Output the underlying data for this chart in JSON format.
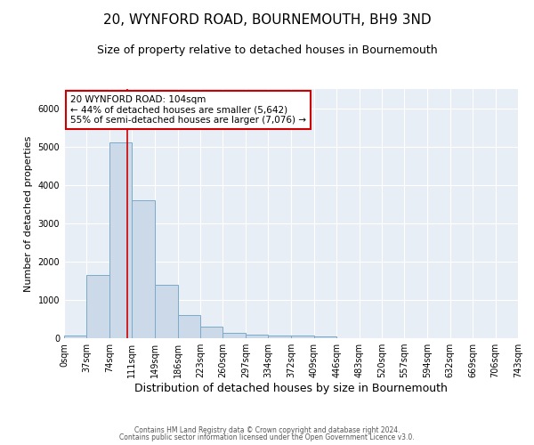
{
  "title": "20, WYNFORD ROAD, BOURNEMOUTH, BH9 3ND",
  "subtitle": "Size of property relative to detached houses in Bournemouth",
  "xlabel": "Distribution of detached houses by size in Bournemouth",
  "ylabel": "Number of detached properties",
  "bin_edges": [
    0,
    37,
    74,
    111,
    149,
    186,
    223,
    260,
    297,
    334,
    372,
    409,
    446,
    483,
    520,
    557,
    594,
    632,
    669,
    706,
    743
  ],
  "bin_labels": [
    "0sqm",
    "37sqm",
    "74sqm",
    "111sqm",
    "149sqm",
    "186sqm",
    "223sqm",
    "260sqm",
    "297sqm",
    "334sqm",
    "372sqm",
    "409sqm",
    "446sqm",
    "483sqm",
    "520sqm",
    "557sqm",
    "594sqm",
    "632sqm",
    "669sqm",
    "706sqm",
    "743sqm"
  ],
  "bar_heights": [
    75,
    1650,
    5100,
    3600,
    1400,
    600,
    300,
    150,
    90,
    75,
    60,
    55,
    0,
    0,
    0,
    0,
    0,
    0,
    0,
    0
  ],
  "bar_color": "#ccd9e8",
  "bar_edgecolor": "#7aaaca",
  "ylim": [
    0,
    6500
  ],
  "xlim": [
    0,
    743
  ],
  "property_line_x": 104,
  "property_line_color": "#cc0000",
  "annotation_text": "20 WYNFORD ROAD: 104sqm\n← 44% of detached houses are smaller (5,642)\n55% of semi-detached houses are larger (7,076) →",
  "annotation_box_color": "#cc0000",
  "annotation_fill": "#ffffff",
  "background_color": "#e8eef5",
  "footer_line1": "Contains HM Land Registry data © Crown copyright and database right 2024.",
  "footer_line2": "Contains public sector information licensed under the Open Government Licence v3.0.",
  "title_fontsize": 11,
  "subtitle_fontsize": 9,
  "ylabel_fontsize": 8,
  "xlabel_fontsize": 9,
  "tick_fontsize": 7,
  "annotation_fontsize": 7.5,
  "footer_fontsize": 5.5
}
